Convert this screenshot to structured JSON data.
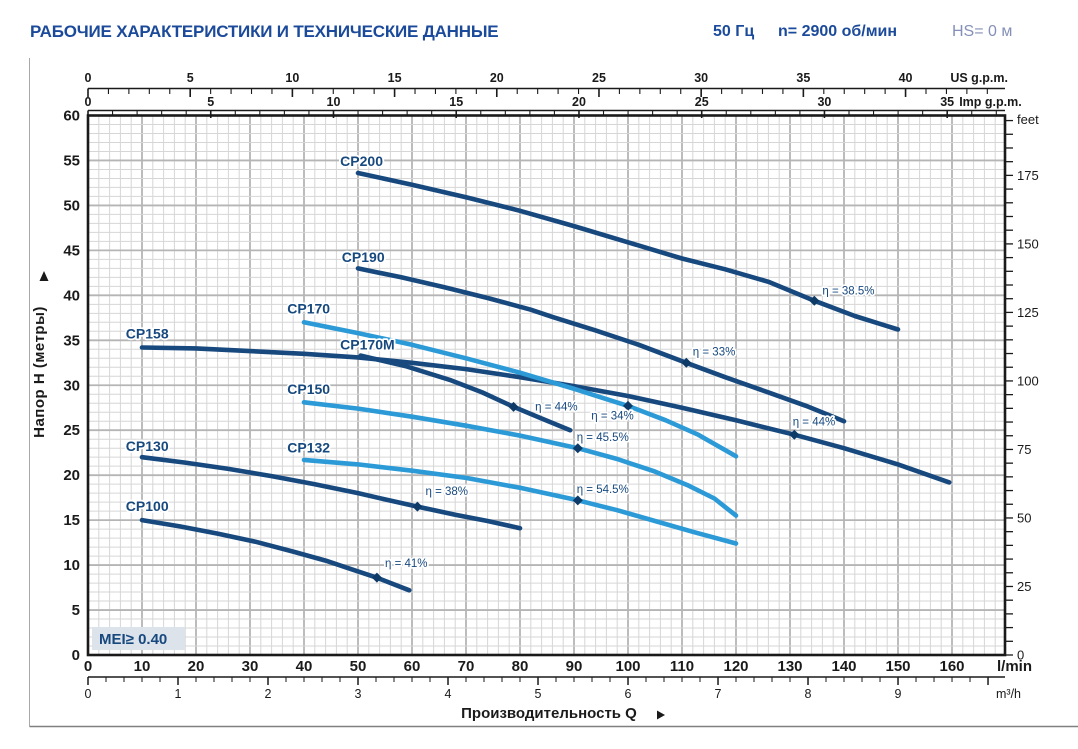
{
  "header": {
    "title": "РАБОЧИЕ ХАРАКТЕРИСТИКИ И ТЕХНИЧЕСКИЕ ДАННЫЕ",
    "frequency": "50 Гц",
    "speed": "n= 2900 об/мин",
    "suction": "HS= 0 м"
  },
  "colors": {
    "navy_curve": "#17497f",
    "light_blue_curve": "#2b9ad6",
    "marker": "#0e3a68",
    "header_navy": "#1b4a9b",
    "hs_muted": "#8590b8",
    "grid_minor": "#d6d6d6",
    "grid_major": "#b5b5b5",
    "axis_black": "#1a1a1a",
    "frame_gray": "#a8a8a8",
    "mei_bg": "#dde3ea"
  },
  "chart_data": {
    "type": "line",
    "x_label": "Производительность Q",
    "y_axis": {
      "label": "Напор H (метры)",
      "min": 0,
      "max": 60,
      "tick_major": 5,
      "tick_minor": 1
    },
    "y_axis_right": {
      "unit": "feet",
      "label_step": 25,
      "tick_minor": 5,
      "max_label": 175,
      "max_tick": 195
    },
    "x_axis_bottom": {
      "unit": "l/min",
      "min": 0,
      "max": 160,
      "label_step": 10,
      "grid_minor_lmin": 2
    },
    "x_axis_m3h": {
      "unit": "m³/h",
      "max_label": 9,
      "tick_minor": 0.2,
      "lmin_per_unit": 16.667
    },
    "x_axis_us": {
      "unit": "US g.p.m.",
      "max_label": 40,
      "max_tick": 44,
      "label_step": 5,
      "tick_minor": 1,
      "lmin_per_unit": 3.785
    },
    "x_axis_imp": {
      "unit": "Imp g.p.m.",
      "max_label": 35,
      "max_tick": 37,
      "label_step": 5,
      "tick_minor": 1,
      "lmin_per_unit": 4.546
    },
    "mei_label": "MEI≥ 0.40",
    "series": [
      {
        "name": "CP200",
        "color": "navy",
        "label_at": [
          46.7,
          54.4
        ],
        "points": [
          [
            50,
            53.6
          ],
          [
            60,
            52.3
          ],
          [
            70,
            50.9
          ],
          [
            80,
            49.4
          ],
          [
            90,
            47.7
          ],
          [
            100,
            45.9
          ],
          [
            110,
            44.1
          ],
          [
            118,
            42.9
          ],
          [
            126,
            41.5
          ],
          [
            134.5,
            39.4
          ],
          [
            142,
            37.7
          ],
          [
            150,
            36.2
          ]
        ],
        "efficiency": {
          "text": "η = 38.5%",
          "marker": [
            134.5,
            39.4
          ],
          "label_at": [
            136,
            40.1
          ]
        }
      },
      {
        "name": "CP190",
        "color": "navy",
        "label_at": [
          47,
          43.7
        ],
        "points": [
          [
            50,
            43
          ],
          [
            58,
            42
          ],
          [
            66,
            40.9
          ],
          [
            74,
            39.7
          ],
          [
            82,
            38.4
          ],
          [
            86,
            37.6
          ],
          [
            94,
            36.1
          ],
          [
            102,
            34.5
          ],
          [
            110.8,
            32.5
          ],
          [
            118,
            30.9
          ],
          [
            126,
            29.2
          ],
          [
            133,
            27.7
          ],
          [
            140,
            26
          ]
        ],
        "efficiency": {
          "text": "η = 33%",
          "marker": [
            110.8,
            32.5
          ],
          "label_at": [
            112,
            33.3
          ]
        }
      },
      {
        "name": "CP158",
        "color": "navy",
        "label_at": [
          7,
          35.2
        ],
        "points": [
          [
            10,
            34.2
          ],
          [
            20,
            34.1
          ],
          [
            30,
            33.8
          ],
          [
            40,
            33.5
          ],
          [
            50,
            33.1
          ],
          [
            60,
            32.5
          ],
          [
            70,
            31.8
          ],
          [
            80,
            30.9
          ],
          [
            90,
            29.9
          ],
          [
            100,
            28.8
          ],
          [
            110,
            27.5
          ],
          [
            120,
            26.1
          ],
          [
            130.8,
            24.5
          ],
          [
            140,
            23
          ],
          [
            150,
            21.2
          ],
          [
            159.5,
            19.2
          ]
        ],
        "efficiency": {
          "text": "η = 44%",
          "marker": [
            130.8,
            24.5
          ],
          "label_at": [
            130.5,
            25.5
          ]
        }
      },
      {
        "name": "CP170M",
        "color": "navy",
        "label_at": [
          46.7,
          34.0
        ],
        "points": [
          [
            50.5,
            33.3
          ],
          [
            59,
            32.1
          ],
          [
            67,
            30.6
          ],
          [
            73,
            29.2
          ],
          [
            78.8,
            27.6
          ],
          [
            84,
            26.3
          ],
          [
            89.3,
            25
          ]
        ],
        "efficiency": {
          "text": "η = 44%",
          "marker": [
            78.8,
            27.6
          ],
          "label_at": [
            82.8,
            27.2
          ]
        }
      },
      {
        "name": "CP130",
        "color": "navy",
        "label_at": [
          7,
          22.7
        ],
        "points": [
          [
            10,
            22
          ],
          [
            18,
            21.4
          ],
          [
            26,
            20.7
          ],
          [
            34,
            19.9
          ],
          [
            42,
            19
          ],
          [
            50,
            18
          ],
          [
            55,
            17.3
          ],
          [
            61,
            16.5
          ],
          [
            68,
            15.6
          ],
          [
            74,
            14.9
          ],
          [
            80,
            14.1
          ]
        ],
        "efficiency": {
          "text": "η = 38%",
          "marker": [
            61,
            16.5
          ],
          "label_at": [
            62.5,
            17.8
          ]
        }
      },
      {
        "name": "CP100",
        "color": "navy",
        "label_at": [
          7,
          16.0
        ],
        "points": [
          [
            10,
            15
          ],
          [
            17,
            14.3
          ],
          [
            24,
            13.5
          ],
          [
            31,
            12.6
          ],
          [
            38,
            11.5
          ],
          [
            44,
            10.5
          ],
          [
            50,
            9.3
          ],
          [
            53.5,
            8.6
          ],
          [
            59.5,
            7.2
          ]
        ],
        "efficiency": {
          "text": "η = 41%",
          "marker": [
            53.5,
            8.6
          ],
          "label_at": [
            55,
            9.8
          ]
        }
      },
      {
        "name": "CP170",
        "color": "light_blue",
        "label_at": [
          36.9,
          38.0
        ],
        "points": [
          [
            40,
            37
          ],
          [
            50,
            35.8
          ],
          [
            60,
            34.5
          ],
          [
            70,
            33
          ],
          [
            80,
            31.4
          ],
          [
            90,
            29.6
          ],
          [
            100,
            27.7
          ],
          [
            107,
            26.1
          ],
          [
            113,
            24.5
          ],
          [
            120,
            22.1
          ]
        ],
        "efficiency": {
          "text": "η = 34%",
          "marker": [
            100,
            27.7
          ],
          "label_at": [
            93.2,
            26.2
          ]
        }
      },
      {
        "name": "CP150",
        "color": "light_blue",
        "label_at": [
          36.9,
          29.0
        ],
        "points": [
          [
            40,
            28.1
          ],
          [
            50,
            27.4
          ],
          [
            60,
            26.5
          ],
          [
            70,
            25.5
          ],
          [
            80,
            24.4
          ],
          [
            90.7,
            23
          ],
          [
            98,
            21.8
          ],
          [
            105,
            20.4
          ],
          [
            111,
            18.9
          ],
          [
            116,
            17.4
          ],
          [
            120,
            15.5
          ]
        ],
        "efficiency": {
          "text": "η = 45.5%",
          "marker": [
            90.7,
            23
          ],
          "label_at": [
            90.5,
            23.8
          ]
        }
      },
      {
        "name": "CP132",
        "color": "light_blue",
        "label_at": [
          36.9,
          22.5
        ],
        "points": [
          [
            40,
            21.7
          ],
          [
            50,
            21.2
          ],
          [
            60,
            20.5
          ],
          [
            70,
            19.7
          ],
          [
            80,
            18.6
          ],
          [
            90.7,
            17.2
          ],
          [
            98,
            16.1
          ],
          [
            105,
            14.9
          ],
          [
            112,
            13.7
          ],
          [
            120,
            12.4
          ]
        ],
        "efficiency": {
          "text": "η = 54.5%",
          "marker": [
            90.7,
            17.2
          ],
          "label_at": [
            90.5,
            18.0
          ]
        }
      }
    ]
  }
}
